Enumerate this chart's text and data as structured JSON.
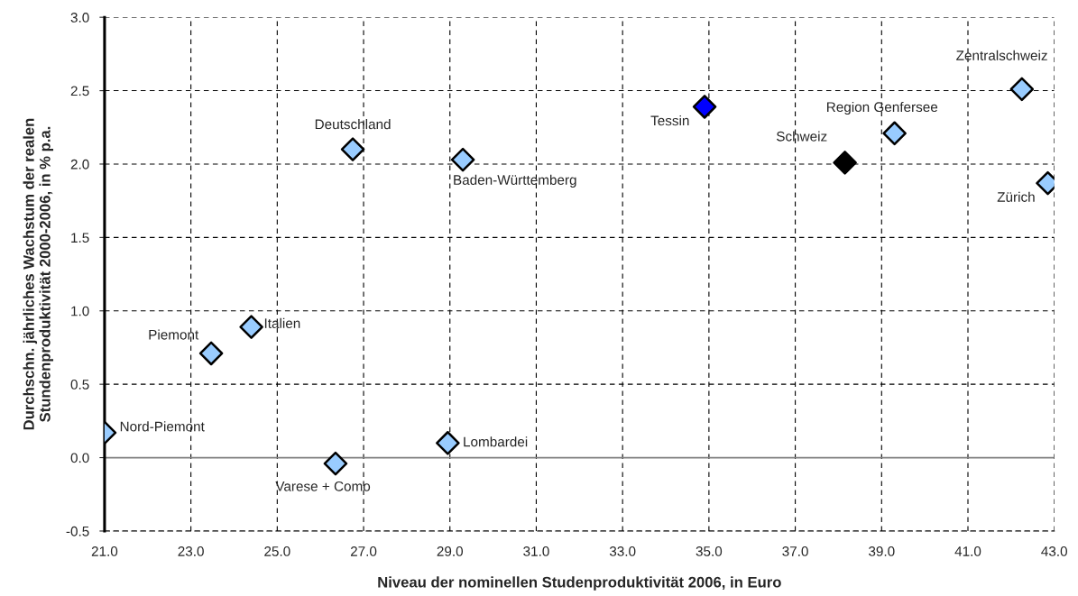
{
  "chart_data": {
    "type": "scatter",
    "xlabel": "Niveau der nominellen Studenproduktivität 2006, in Euro",
    "ylabel": "Durchschn. jährliches Wachstum der realen\nStundenproduktivität 2000-2006, in % p.a.",
    "series": [
      {
        "name": "Nord-Piemont",
        "color": "#99ccff",
        "x": [
          21.0
        ],
        "values": [
          0.17
        ]
      },
      {
        "name": "Piemont",
        "color": "#99ccff",
        "x": [
          23.47
        ],
        "values": [
          0.71
        ]
      },
      {
        "name": "Italien",
        "color": "#99ccff",
        "x": [
          24.4
        ],
        "values": [
          0.89
        ]
      },
      {
        "name": "Deutschland",
        "color": "#99ccff",
        "x": [
          26.75
        ],
        "values": [
          2.1
        ]
      },
      {
        "name": "Baden-Württemberg",
        "color": "#99ccff",
        "x": [
          29.3
        ],
        "values": [
          2.03
        ]
      },
      {
        "name": "Varese + Como",
        "color": "#99ccff",
        "x": [
          26.35
        ],
        "values": [
          -0.04
        ]
      },
      {
        "name": "Lombardei",
        "color": "#99ccff",
        "x": [
          28.95
        ],
        "values": [
          0.1
        ]
      },
      {
        "name": "Tessin",
        "color": "#0000ff",
        "x": [
          34.9
        ],
        "values": [
          2.39
        ]
      },
      {
        "name": "Schweiz",
        "color": "#000000",
        "x": [
          38.15
        ],
        "values": [
          2.01
        ]
      },
      {
        "name": "Region Genfersee",
        "color": "#99ccff",
        "x": [
          39.3
        ],
        "values": [
          2.21
        ]
      },
      {
        "name": "Zentralschweiz",
        "color": "#99ccff",
        "x": [
          42.25
        ],
        "values": [
          2.51
        ]
      },
      {
        "name": "Zürich",
        "color": "#99ccff",
        "x": [
          42.85
        ],
        "values": [
          1.87
        ]
      }
    ],
    "xlim": [
      21.0,
      43.0
    ],
    "xticks": [
      {
        "value": 21,
        "label": "21.0"
      },
      {
        "value": 23,
        "label": "23.0"
      },
      {
        "value": 25,
        "label": "25.0"
      },
      {
        "value": 27,
        "label": "27.0"
      },
      {
        "value": 29,
        "label": "29.0"
      },
      {
        "value": 31,
        "label": "31.0"
      },
      {
        "value": 33,
        "label": "33.0"
      },
      {
        "value": 35,
        "label": "35.0"
      },
      {
        "value": 37,
        "label": "37.0"
      },
      {
        "value": 39,
        "label": "39.0"
      },
      {
        "value": 41,
        "label": "41.0"
      },
      {
        "value": 43,
        "label": "43.0"
      }
    ],
    "ylim": [
      -0.5,
      3.0
    ],
    "yticks": [
      -0.5,
      {
        "value": 0,
        "label": "0.0"
      },
      0.5,
      {
        "value": 1,
        "label": "1.0"
      },
      1.5,
      {
        "value": 2,
        "label": "2.0"
      },
      2.5,
      {
        "value": 3,
        "label": "3.0"
      }
    ],
    "ref_lines": [
      {
        "axis": "y",
        "value": 0,
        "color": "#808080",
        "line_style": "solid"
      }
    ],
    "grid": true,
    "marker": "diamond",
    "legend": false
  }
}
